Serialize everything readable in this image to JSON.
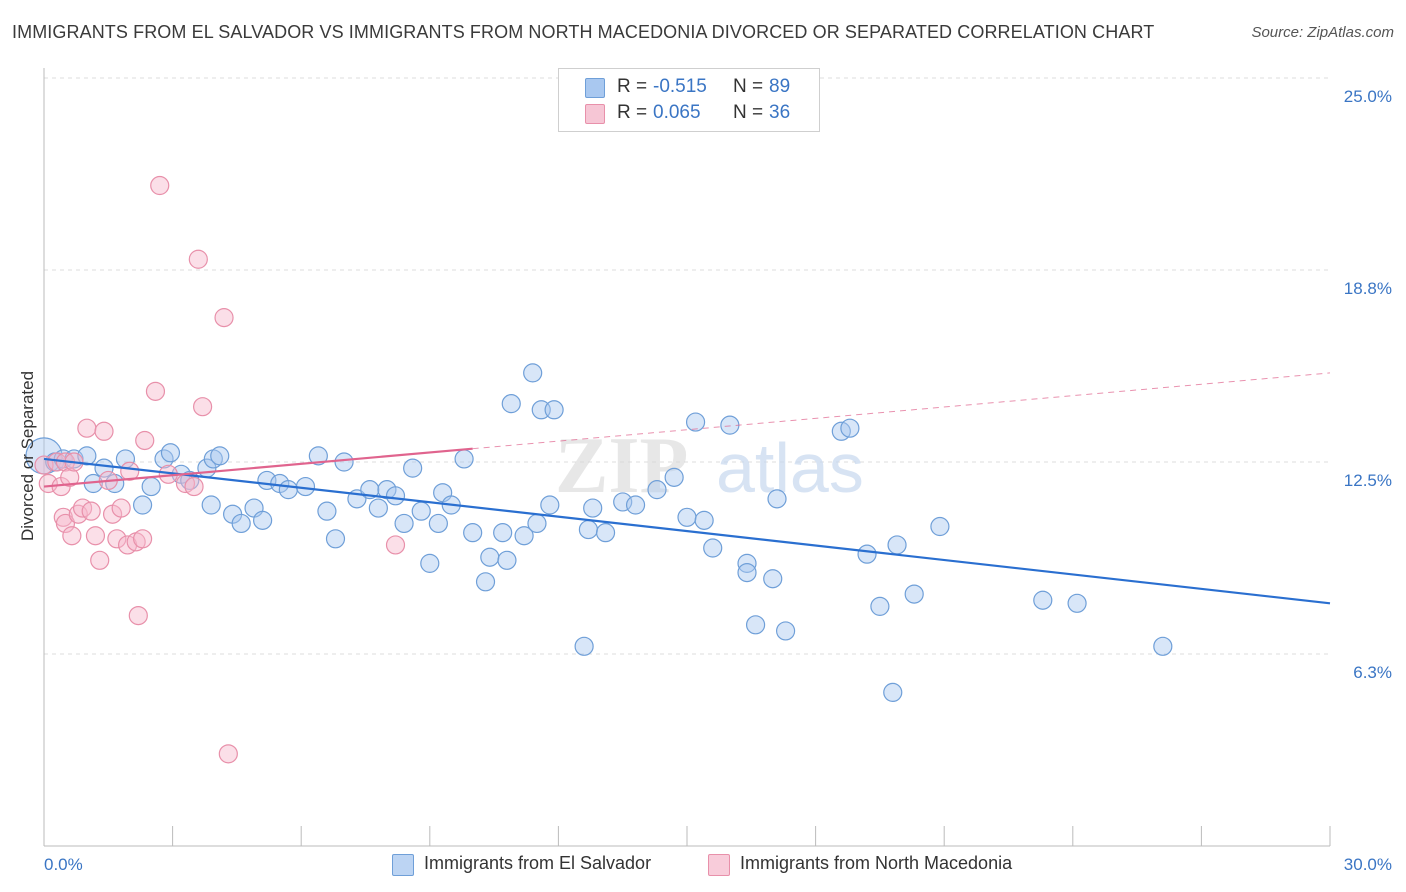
{
  "title": "IMMIGRANTS FROM EL SALVADOR VS IMMIGRANTS FROM NORTH MACEDONIA DIVORCED OR SEPARATED CORRELATION CHART",
  "source": "Source: ZipAtlas.com",
  "watermark": "ZIPatlas",
  "colors": {
    "blue_fill": "#a9c8f0",
    "blue_stroke": "#6f9fd8",
    "blue_line": "#2a6fd0",
    "pink_fill": "#f6b8cb",
    "pink_stroke": "#e890aa",
    "pink_line": "#e0648e",
    "tick_label": "#3a75c4",
    "grid": "#dcdcdc"
  },
  "legend": {
    "rows": [
      {
        "r_label": "R =",
        "r_value": "-0.515",
        "n_label": "N =",
        "n_value": "89"
      },
      {
        "r_label": "R =",
        "r_value": "0.065",
        "n_label": "N =",
        "n_value": "36"
      }
    ]
  },
  "bottom_legend": [
    "Immigrants from El Salvador",
    "Immigrants from North Macedonia"
  ],
  "chart_data": {
    "type": "scatter",
    "title": "IMMIGRANTS FROM EL SALVADOR VS IMMIGRANTS FROM NORTH MACEDONIA DIVORCED OR SEPARATED CORRELATION CHART",
    "xlabel": "",
    "ylabel": "Divorced or Separated",
    "xlim": [
      0,
      30
    ],
    "ylim": [
      0,
      25
    ],
    "x_ticks": [
      "0.0%",
      "30.0%"
    ],
    "y_ticks": [
      {
        "value": 6.25,
        "label": "6.3%"
      },
      {
        "value": 12.5,
        "label": "12.5%"
      },
      {
        "value": 18.75,
        "label": "18.8%"
      },
      {
        "value": 25.0,
        "label": "25.0%"
      }
    ],
    "grid": true,
    "legend_position": "top-center",
    "series": [
      {
        "name": "Immigrants from El Salvador",
        "color": "#a9c8f0",
        "trend": {
          "x": [
            0,
            30
          ],
          "y": [
            12.6,
            7.9
          ],
          "dashed_after": null
        },
        "points": [
          [
            0.0,
            12.7
          ],
          [
            0.25,
            12.5
          ],
          [
            0.45,
            12.6
          ],
          [
            0.7,
            12.6
          ],
          [
            1.0,
            12.7
          ],
          [
            1.15,
            11.8
          ],
          [
            1.4,
            12.3
          ],
          [
            1.65,
            11.8
          ],
          [
            1.9,
            12.6
          ],
          [
            2.3,
            11.1
          ],
          [
            2.5,
            11.7
          ],
          [
            2.8,
            12.6
          ],
          [
            2.95,
            12.8
          ],
          [
            3.2,
            12.1
          ],
          [
            3.4,
            11.9
          ],
          [
            3.8,
            12.3
          ],
          [
            3.95,
            12.6
          ],
          [
            4.1,
            12.7
          ],
          [
            3.9,
            11.1
          ],
          [
            4.4,
            10.8
          ],
          [
            4.6,
            10.5
          ],
          [
            4.9,
            11.0
          ],
          [
            5.1,
            10.6
          ],
          [
            5.2,
            11.9
          ],
          [
            5.5,
            11.8
          ],
          [
            5.7,
            11.6
          ],
          [
            6.1,
            11.7
          ],
          [
            6.4,
            12.7
          ],
          [
            6.6,
            10.9
          ],
          [
            6.8,
            10.0
          ],
          [
            7.0,
            12.5
          ],
          [
            7.3,
            11.3
          ],
          [
            7.6,
            11.6
          ],
          [
            7.8,
            11.0
          ],
          [
            8.0,
            11.6
          ],
          [
            8.2,
            11.4
          ],
          [
            8.4,
            10.5
          ],
          [
            8.6,
            12.3
          ],
          [
            8.8,
            10.9
          ],
          [
            9.0,
            9.2
          ],
          [
            9.2,
            10.5
          ],
          [
            9.3,
            11.5
          ],
          [
            9.5,
            11.1
          ],
          [
            9.8,
            12.6
          ],
          [
            10.0,
            10.2
          ],
          [
            10.3,
            8.6
          ],
          [
            10.4,
            9.4
          ],
          [
            10.7,
            10.2
          ],
          [
            10.8,
            9.3
          ],
          [
            10.9,
            14.4
          ],
          [
            11.2,
            10.1
          ],
          [
            11.4,
            15.4
          ],
          [
            11.5,
            10.5
          ],
          [
            11.6,
            14.2
          ],
          [
            11.8,
            11.1
          ],
          [
            11.9,
            14.2
          ],
          [
            12.6,
            6.5
          ],
          [
            12.7,
            10.3
          ],
          [
            12.8,
            11.0
          ],
          [
            13.1,
            10.2
          ],
          [
            13.5,
            11.2
          ],
          [
            13.8,
            11.1
          ],
          [
            14.3,
            11.6
          ],
          [
            14.7,
            12.0
          ],
          [
            15.0,
            10.7
          ],
          [
            15.2,
            13.8
          ],
          [
            15.4,
            10.6
          ],
          [
            15.6,
            9.7
          ],
          [
            16.0,
            13.7
          ],
          [
            16.4,
            9.2
          ],
          [
            16.4,
            8.9
          ],
          [
            16.6,
            7.2
          ],
          [
            17.0,
            8.7
          ],
          [
            17.1,
            11.3
          ],
          [
            17.3,
            7.0
          ],
          [
            18.6,
            13.5
          ],
          [
            18.8,
            13.6
          ],
          [
            19.2,
            9.5
          ],
          [
            19.5,
            7.8
          ],
          [
            19.8,
            5.0
          ],
          [
            19.9,
            9.8
          ],
          [
            20.3,
            8.2
          ],
          [
            20.9,
            10.4
          ],
          [
            23.3,
            8.0
          ],
          [
            24.1,
            7.9
          ],
          [
            26.1,
            6.5
          ]
        ]
      },
      {
        "name": "Immigrants from North Macedonia",
        "color": "#f6b8cb",
        "trend": {
          "x": [
            0,
            30
          ],
          "y": [
            11.7,
            15.4
          ],
          "dashed_after": 10.0
        },
        "points": [
          [
            0.0,
            12.4
          ],
          [
            0.1,
            11.8
          ],
          [
            0.3,
            12.5
          ],
          [
            0.4,
            11.7
          ],
          [
            0.45,
            10.7
          ],
          [
            0.5,
            10.5
          ],
          [
            0.5,
            12.5
          ],
          [
            0.6,
            12.0
          ],
          [
            0.65,
            10.1
          ],
          [
            0.7,
            12.5
          ],
          [
            0.8,
            10.8
          ],
          [
            0.9,
            11.0
          ],
          [
            1.0,
            13.6
          ],
          [
            1.1,
            10.9
          ],
          [
            1.2,
            10.1
          ],
          [
            1.3,
            9.3
          ],
          [
            1.4,
            13.5
          ],
          [
            1.5,
            11.9
          ],
          [
            1.6,
            10.8
          ],
          [
            1.7,
            10.0
          ],
          [
            1.8,
            11.0
          ],
          [
            1.95,
            9.8
          ],
          [
            2.0,
            12.2
          ],
          [
            2.15,
            9.9
          ],
          [
            2.2,
            7.5
          ],
          [
            2.3,
            10.0
          ],
          [
            2.35,
            13.2
          ],
          [
            2.6,
            14.8
          ],
          [
            2.7,
            21.5
          ],
          [
            2.9,
            12.1
          ],
          [
            3.3,
            11.8
          ],
          [
            3.5,
            11.7
          ],
          [
            3.6,
            19.1
          ],
          [
            3.7,
            14.3
          ],
          [
            4.2,
            17.2
          ],
          [
            4.3,
            3.0
          ],
          [
            8.2,
            9.8
          ]
        ]
      }
    ]
  }
}
